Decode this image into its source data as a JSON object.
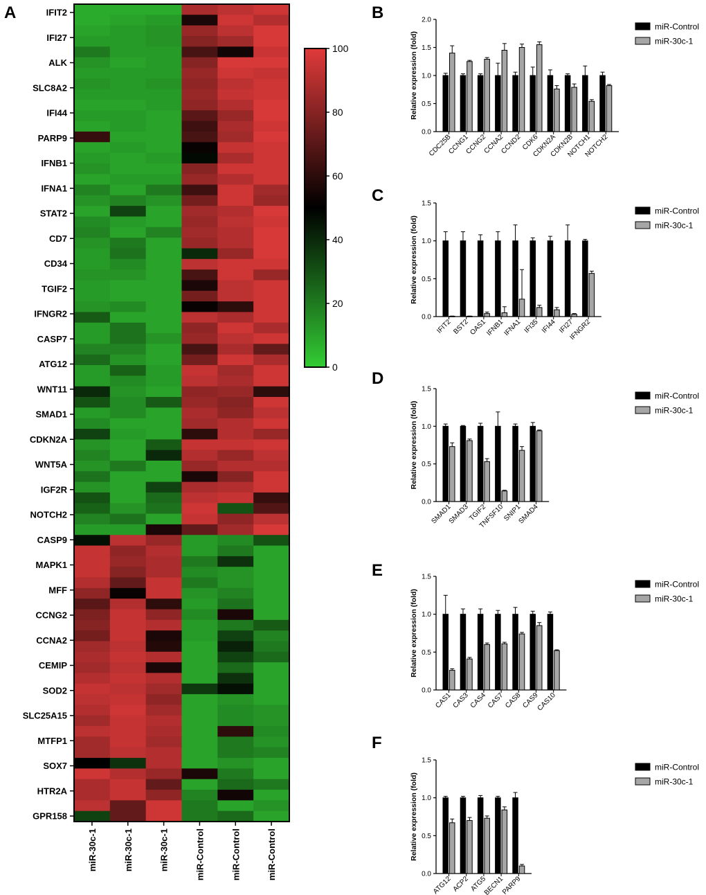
{
  "heatmap": {
    "panel": "A",
    "genes": [
      "IFIT2",
      "IFI27",
      "ALK",
      "SLC8A2",
      "IFI44",
      "PARP9",
      "IFNB1",
      "IFNA1",
      "STAT2",
      "CD7",
      "CD34",
      "TGIF2",
      "IFNGR2",
      "CASP7",
      "ATG12",
      "WNT11",
      "SMAD1",
      "CDKN2A",
      "WNT5A",
      "IGF2R",
      "NOTCH2",
      "CASP9",
      "MAPK1",
      "MFF",
      "CCNG2",
      "CCNA2",
      "CEMIP",
      "SOD2",
      "SLC25A15",
      "MTFP1",
      "SOX7",
      "HTR2A",
      "GPR158"
    ],
    "samples": [
      "miR-30c-1",
      "miR-30c-1",
      "miR-30c-1",
      "miR-Control",
      "miR-Control",
      "miR-Control"
    ],
    "colorbar": {
      "ticks": [
        "100",
        "80",
        "60",
        "40",
        "20",
        "0"
      ],
      "min": 0,
      "max": 100,
      "colors": {
        "low": "#33cc33",
        "mid": "#000000",
        "high": "#e03a3a"
      }
    },
    "values": [
      [
        8,
        8,
        8,
        88,
        92,
        96
      ],
      [
        8,
        10,
        12,
        56,
        96,
        90
      ],
      [
        10,
        12,
        14,
        84,
        92,
        98
      ],
      [
        12,
        12,
        14,
        80,
        86,
        98
      ],
      [
        20,
        12,
        12,
        66,
        54,
        95
      ],
      [
        14,
        10,
        12,
        80,
        98,
        98
      ],
      [
        12,
        12,
        12,
        84,
        96,
        94
      ],
      [
        14,
        12,
        14,
        82,
        92,
        96
      ],
      [
        12,
        12,
        12,
        84,
        94,
        96
      ],
      [
        10,
        10,
        12,
        82,
        90,
        98
      ],
      [
        12,
        12,
        10,
        70,
        84,
        98
      ],
      [
        10,
        12,
        10,
        64,
        88,
        96
      ],
      [
        62,
        10,
        10,
        66,
        86,
        98
      ],
      [
        10,
        12,
        10,
        52,
        94,
        96
      ],
      [
        12,
        10,
        12,
        48,
        88,
        96
      ],
      [
        14,
        10,
        10,
        80,
        96,
        96
      ],
      [
        10,
        12,
        12,
        84,
        90,
        96
      ],
      [
        18,
        10,
        20,
        64,
        96,
        86
      ],
      [
        14,
        18,
        14,
        76,
        96,
        84
      ],
      [
        10,
        34,
        10,
        86,
        90,
        98
      ],
      [
        16,
        12,
        10,
        84,
        92,
        96
      ],
      [
        18,
        10,
        18,
        86,
        90,
        98
      ],
      [
        14,
        20,
        10,
        84,
        90,
        98
      ],
      [
        12,
        22,
        10,
        40,
        84,
        98
      ],
      [
        12,
        16,
        10,
        92,
        96,
        96
      ],
      [
        14,
        14,
        10,
        66,
        96,
        84
      ],
      [
        12,
        10,
        10,
        56,
        92,
        96
      ],
      [
        12,
        10,
        10,
        76,
        92,
        96
      ],
      [
        14,
        16,
        10,
        52,
        60,
        96
      ],
      [
        28,
        10,
        10,
        92,
        88,
        96
      ],
      [
        12,
        22,
        10,
        82,
        96,
        88
      ],
      [
        12,
        22,
        14,
        84,
        92,
        96
      ],
      [
        18,
        18,
        10,
        66,
        88,
        72
      ],
      [
        24,
        14,
        10,
        76,
        96,
        88
      ],
      [
        12,
        26,
        12,
        94,
        86,
        96
      ],
      [
        12,
        16,
        12,
        92,
        88,
        96
      ],
      [
        40,
        14,
        10,
        82,
        84,
        60
      ],
      [
        30,
        16,
        28,
        84,
        80,
        96
      ],
      [
        12,
        16,
        10,
        88,
        82,
        92
      ],
      [
        16,
        10,
        10,
        86,
        90,
        96
      ],
      [
        34,
        12,
        10,
        60,
        90,
        84
      ],
      [
        14,
        10,
        28,
        94,
        94,
        96
      ],
      [
        18,
        10,
        40,
        90,
        84,
        92
      ],
      [
        14,
        20,
        10,
        84,
        90,
        90
      ],
      [
        22,
        10,
        10,
        56,
        80,
        96
      ],
      [
        14,
        10,
        34,
        88,
        90,
        96
      ],
      [
        30,
        10,
        24,
        92,
        94,
        62
      ],
      [
        26,
        14,
        22,
        96,
        30,
        68
      ],
      [
        18,
        22,
        10,
        94,
        82,
        92
      ],
      [
        12,
        12,
        56,
        72,
        86,
        98
      ],
      [
        46,
        92,
        84,
        12,
        16,
        30
      ],
      [
        94,
        82,
        90,
        12,
        20,
        10
      ],
      [
        94,
        84,
        88,
        20,
        38,
        10
      ],
      [
        94,
        80,
        88,
        16,
        14,
        10
      ],
      [
        90,
        72,
        94,
        20,
        14,
        10
      ],
      [
        82,
        52,
        94,
        14,
        18,
        10
      ],
      [
        70,
        90,
        60,
        12,
        22,
        10
      ],
      [
        78,
        94,
        82,
        16,
        56,
        10
      ],
      [
        80,
        94,
        90,
        12,
        20,
        28
      ],
      [
        76,
        94,
        56,
        12,
        34,
        18
      ],
      [
        86,
        92,
        58,
        10,
        42,
        20
      ],
      [
        88,
        94,
        90,
        10,
        34,
        24
      ],
      [
        86,
        92,
        56,
        10,
        24,
        10
      ],
      [
        90,
        94,
        90,
        10,
        38,
        10
      ],
      [
        94,
        92,
        86,
        36,
        46,
        10
      ],
      [
        92,
        94,
        82,
        10,
        14,
        10
      ],
      [
        90,
        96,
        86,
        10,
        16,
        14
      ],
      [
        86,
        94,
        90,
        10,
        16,
        14
      ],
      [
        92,
        94,
        88,
        10,
        60,
        16
      ],
      [
        86,
        94,
        86,
        10,
        20,
        14
      ],
      [
        86,
        92,
        90,
        10,
        20,
        18
      ],
      [
        50,
        38,
        90,
        10,
        14,
        10
      ],
      [
        96,
        90,
        84,
        56,
        20,
        10
      ],
      [
        88,
        94,
        72,
        10,
        24,
        20
      ],
      [
        88,
        94,
        82,
        18,
        54,
        10
      ],
      [
        92,
        72,
        96,
        20,
        10,
        14
      ],
      [
        34,
        72,
        96,
        20,
        24,
        10
      ]
    ]
  },
  "bar_panels": [
    {
      "letter": "B",
      "ylabel": "Relative expression (fold)",
      "categories": [
        "CDC25B",
        "CCNG1",
        "CCNG2",
        "CCNA2",
        "CCND2",
        "CDK6",
        "CDKN2A",
        "CDKN2B",
        "NOTCH1",
        "NOTCH2"
      ],
      "legend": [
        "miR-Control",
        "miR-30c-1"
      ]
    },
    {
      "letter": "C",
      "ylabel": "Relative expression (fold)",
      "categories": [
        "IFIT2",
        "BST2",
        "OAS1",
        "IFNB1",
        "IFNA1",
        "IFI35",
        "IFI44",
        "IFI27",
        "IFNGR2"
      ],
      "legend": [
        "miR-Control",
        "miR-30c-1"
      ]
    },
    {
      "letter": "D",
      "ylabel": "Relative expression (fold)",
      "categories": [
        "SMAD1",
        "SMAD3",
        "TGIF2",
        "TNFSF10",
        "SNIP1",
        "SMAD4"
      ],
      "legend": [
        "miR-Control",
        "miR-30c-1"
      ]
    },
    {
      "letter": "E",
      "ylabel": "Relative expression (fold)",
      "categories": [
        "CAS1",
        "CAS3",
        "CAS4",
        "CAS7",
        "CAS8",
        "CAS9",
        "CAS10"
      ],
      "legend": [
        "miR-Control",
        "miR-30c-1"
      ]
    },
    {
      "letter": "F",
      "ylabel": "Relative expression (fold)",
      "categories": [
        "ATG12",
        "ACP2",
        "ATG5",
        "BECN1",
        "PARP9"
      ],
      "legend": [
        "miR-Control",
        "miR-30c-1"
      ]
    }
  ],
  "chart_data": [
    {
      "type": "heatmap",
      "panel": "A",
      "note_ref": "heatmap.values",
      "value_range": [
        0,
        100
      ]
    },
    {
      "type": "bar",
      "panel": "B",
      "ylim": [
        0,
        2.0
      ],
      "yticks": [
        0.0,
        0.5,
        1.0,
        1.5,
        2.0
      ],
      "categories": [
        "CDC25B",
        "CCNG1",
        "CCNG2",
        "CCNA2",
        "CCND2",
        "CDK6",
        "CDKN2A",
        "CDKN2B",
        "NOTCH1",
        "NOTCH2"
      ],
      "series": [
        {
          "name": "miR-Control",
          "color": "#000000",
          "values": [
            1.0,
            1.0,
            1.0,
            1.0,
            1.0,
            1.0,
            1.0,
            1.0,
            1.0,
            1.0
          ],
          "errors": [
            0.04,
            0.03,
            0.03,
            0.22,
            0.06,
            0.15,
            0.1,
            0.03,
            0.17,
            0.06
          ]
        },
        {
          "name": "miR-30c-1",
          "color": "#a6a6a6",
          "values": [
            1.4,
            1.25,
            1.29,
            1.45,
            1.5,
            1.55,
            0.76,
            0.79,
            0.54,
            0.82
          ],
          "errors": [
            0.13,
            0.02,
            0.03,
            0.12,
            0.06,
            0.05,
            0.06,
            0.06,
            0.03,
            0.02
          ]
        }
      ]
    },
    {
      "type": "bar",
      "panel": "C",
      "ylim": [
        0,
        1.5
      ],
      "yticks": [
        0.0,
        0.5,
        1.0,
        1.5
      ],
      "categories": [
        "IFIT2",
        "BST2",
        "OAS1",
        "IFNB1",
        "IFNA1",
        "IFI35",
        "IFI44",
        "IFI27",
        "IFNGR2"
      ],
      "series": [
        {
          "name": "miR-Control",
          "color": "#000000",
          "values": [
            1.0,
            1.0,
            1.0,
            1.0,
            1.0,
            1.0,
            1.0,
            1.0,
            1.0
          ],
          "errors": [
            0.12,
            0.12,
            0.08,
            0.12,
            0.21,
            0.04,
            0.06,
            0.21,
            0.02
          ]
        },
        {
          "name": "miR-30c-1",
          "color": "#a6a6a6",
          "values": [
            0.005,
            0.005,
            0.04,
            0.05,
            0.23,
            0.12,
            0.09,
            0.03,
            0.57
          ],
          "errors": [
            0.002,
            0.002,
            0.02,
            0.08,
            0.39,
            0.03,
            0.03,
            0.01,
            0.03
          ]
        }
      ]
    },
    {
      "type": "bar",
      "panel": "D",
      "ylim": [
        0,
        1.5
      ],
      "yticks": [
        0.0,
        0.5,
        1.0,
        1.5
      ],
      "categories": [
        "SMAD1",
        "SMAD3",
        "TGIF2",
        "TNFSF10",
        "SNIP1",
        "SMAD4"
      ],
      "series": [
        {
          "name": "miR-Control",
          "color": "#000000",
          "values": [
            1.0,
            1.0,
            1.0,
            1.0,
            1.0,
            1.0
          ],
          "errors": [
            0.03,
            0.01,
            0.04,
            0.19,
            0.03,
            0.05
          ]
        },
        {
          "name": "miR-30c-1",
          "color": "#a6a6a6",
          "values": [
            0.73,
            0.81,
            0.53,
            0.14,
            0.68,
            0.94
          ],
          "errors": [
            0.05,
            0.02,
            0.04,
            0.01,
            0.05,
            0.01
          ]
        }
      ]
    },
    {
      "type": "bar",
      "panel": "E",
      "ylim": [
        0,
        1.5
      ],
      "yticks": [
        0.0,
        0.5,
        1.0,
        1.5
      ],
      "categories": [
        "CAS1",
        "CAS3",
        "CAS4",
        "CAS7",
        "CAS8",
        "CAS9",
        "CAS10"
      ],
      "series": [
        {
          "name": "miR-Control",
          "color": "#000000",
          "values": [
            1.0,
            1.0,
            1.0,
            1.0,
            1.0,
            1.0,
            1.0
          ],
          "errors": [
            0.25,
            0.07,
            0.07,
            0.05,
            0.09,
            0.04,
            0.03
          ]
        },
        {
          "name": "miR-30c-1",
          "color": "#a6a6a6",
          "values": [
            0.26,
            0.41,
            0.6,
            0.61,
            0.74,
            0.85,
            0.52
          ],
          "errors": [
            0.02,
            0.02,
            0.02,
            0.02,
            0.02,
            0.04,
            0.01
          ]
        }
      ]
    },
    {
      "type": "bar",
      "panel": "F",
      "ylim": [
        0,
        1.5
      ],
      "yticks": [
        0.0,
        0.5,
        1.0,
        1.5
      ],
      "categories": [
        "ATG12",
        "ACP2",
        "ATG5",
        "BECN1",
        "PARP9"
      ],
      "series": [
        {
          "name": "miR-Control",
          "color": "#000000",
          "values": [
            1.0,
            1.0,
            1.0,
            1.0,
            1.0
          ],
          "errors": [
            0.02,
            0.02,
            0.03,
            0.02,
            0.07
          ]
        },
        {
          "name": "miR-30c-1",
          "color": "#a6a6a6",
          "values": [
            0.67,
            0.7,
            0.73,
            0.84,
            0.1
          ],
          "errors": [
            0.05,
            0.04,
            0.03,
            0.04,
            0.02
          ]
        }
      ]
    }
  ]
}
